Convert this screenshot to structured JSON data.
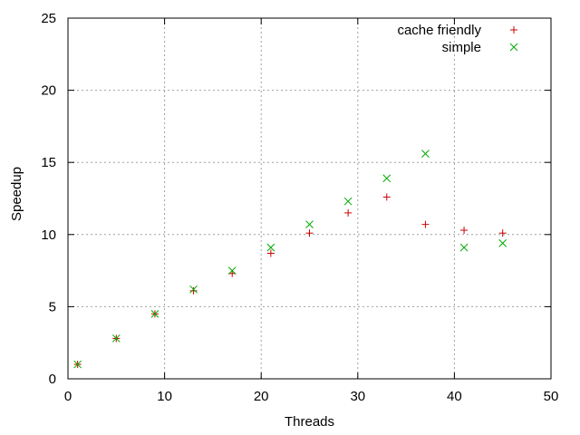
{
  "chart_data": {
    "type": "scatter",
    "title": "",
    "xlabel": "Threads",
    "ylabel": "Speedup",
    "xlim": [
      0,
      50
    ],
    "ylim": [
      0,
      25
    ],
    "xticks": [
      0,
      10,
      20,
      30,
      40,
      50
    ],
    "yticks": [
      0,
      5,
      10,
      15,
      20,
      25
    ],
    "grid": true,
    "legend_position": "top-right",
    "series": [
      {
        "name": "cache friendly",
        "marker": "plus",
        "color": "#cc0000",
        "x": [
          1,
          5,
          9,
          13,
          17,
          21,
          25,
          29,
          33,
          37,
          41,
          45
        ],
        "y": [
          1.0,
          2.8,
          4.5,
          6.1,
          7.3,
          8.7,
          10.1,
          11.5,
          12.6,
          10.7,
          10.3,
          10.1
        ]
      },
      {
        "name": "simple",
        "marker": "cross",
        "color": "#00aa00",
        "x": [
          1,
          5,
          9,
          13,
          17,
          21,
          25,
          29,
          33,
          37,
          41,
          45
        ],
        "y": [
          1.0,
          2.8,
          4.5,
          6.2,
          7.5,
          9.1,
          10.7,
          12.3,
          13.9,
          15.6,
          9.1,
          9.4
        ]
      }
    ]
  }
}
